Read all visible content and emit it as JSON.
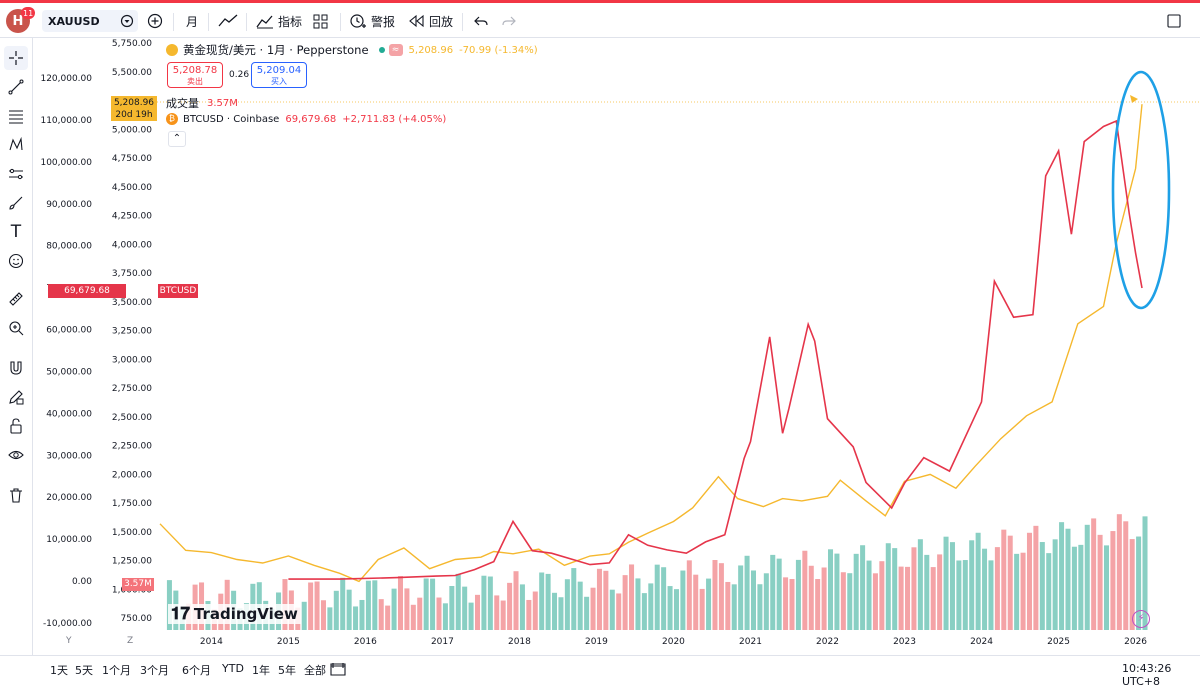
{
  "toolbar": {
    "avatar_letter": "H",
    "notification_count": "11",
    "symbol": "XAUUSD",
    "interval": "月",
    "indicators": "指标",
    "alerts": "警报",
    "replay": "回放"
  },
  "legend": {
    "main_title": "黄金现货/美元 · 1月 · Pepperstone",
    "main_price": "5,208.96",
    "main_change": "-70.99 (-1.34%)",
    "sell_price": "5,208.78",
    "sell_label": "卖出",
    "spread": "0.26",
    "buy_price": "5,209.04",
    "buy_label": "买入",
    "volume_label": "成交量",
    "volume_value": "3.57M",
    "btc_title": "BTCUSD · Coinbase",
    "btc_value": "69,679.68",
    "btc_change": "+2,711.83 (+4.05%)"
  },
  "axis_badges": {
    "btc_left_price": "69,679.68",
    "btc_symbol": "BTCUSD",
    "gold_price": "5,208.96",
    "gold_countdown": "20d 19h",
    "volume_badge": "3.57M"
  },
  "watermark": "TradingView",
  "left_axis_btc": [
    "120,000.00",
    "110,000.00",
    "100,000.00",
    "90,000.00",
    "80,000.00",
    "70,000.00",
    "60,000.00",
    "50,000.00",
    "40,000.00",
    "30,000.00",
    "20,000.00",
    "10,000.00",
    "0.00",
    "-10,000.00"
  ],
  "left_axis_gold": [
    "5,750.00",
    "5,500.00",
    "5,250.00",
    "5,000.00",
    "4,750.00",
    "4,500.00",
    "4,250.00",
    "4,000.00",
    "3,750.00",
    "3,500.00",
    "3,250.00",
    "3,000.00",
    "2,750.00",
    "2,500.00",
    "2,250.00",
    "2,000.00",
    "1,750.00",
    "1,500.00",
    "1,250.00",
    "1,000.00",
    "750.00"
  ],
  "x_axis_years": [
    "2014",
    "2015",
    "2016",
    "2017",
    "2018",
    "2019",
    "2020",
    "2021",
    "2022",
    "2023",
    "2024",
    "2025",
    "2026"
  ],
  "axis_corner": {
    "y": "Y",
    "z": "Z"
  },
  "bottom_bar": {
    "ranges": [
      "1天",
      "5天",
      "1个月",
      "3个月",
      "6个月",
      "YTD",
      "1年",
      "5年",
      "全部"
    ],
    "clock": "10:43:26 UTC+8"
  },
  "colors": {
    "gold_line": "#f5b82e",
    "btc_line": "#e5354a",
    "volume_up": "#89cfc3",
    "volume_down": "#f4a3a6",
    "annotation_ellipse": "#1ea0e6"
  },
  "chart_data": {
    "type": "line",
    "series": [
      {
        "name": "XAUUSD",
        "x": [
          "2013-05",
          "2013-09",
          "2014-01",
          "2014-05",
          "2014-09",
          "2015-01",
          "2015-05",
          "2015-09",
          "2015-12",
          "2016-03",
          "2016-07",
          "2016-11",
          "2017-03",
          "2017-07",
          "2017-09",
          "2017-12",
          "2018-04",
          "2018-08",
          "2018-12",
          "2019-03",
          "2019-06",
          "2019-09",
          "2020-01",
          "2020-04",
          "2020-08",
          "2020-11",
          "2021-03",
          "2021-06",
          "2021-09",
          "2022-01",
          "2022-03",
          "2022-07",
          "2022-10",
          "2023-01",
          "2023-05",
          "2023-09",
          "2023-12",
          "2024-04",
          "2024-08",
          "2024-12",
          "2025-04",
          "2025-08",
          "2025-10",
          "2026-01",
          "2026-02"
        ],
        "values": [
          1560,
          1330,
          1310,
          1250,
          1220,
          1280,
          1200,
          1130,
          1060,
          1250,
          1350,
          1170,
          1250,
          1270,
          1320,
          1300,
          1340,
          1200,
          1280,
          1300,
          1400,
          1480,
          1580,
          1700,
          1970,
          1780,
          1710,
          1780,
          1760,
          1800,
          1940,
          1760,
          1630,
          1930,
          1990,
          1870,
          2060,
          2300,
          2500,
          2620,
          3300,
          3450,
          4000,
          4650,
          5209
        ]
      },
      {
        "name": "BTCUSD",
        "x": [
          "2015-01",
          "2015-09",
          "2016-06",
          "2016-12",
          "2017-03",
          "2017-06",
          "2017-09",
          "2017-12",
          "2018-03",
          "2018-06",
          "2018-12",
          "2019-03",
          "2019-06",
          "2019-09",
          "2019-12",
          "2020-03",
          "2020-06",
          "2020-09",
          "2020-12",
          "2021-01",
          "2021-04",
          "2021-06",
          "2021-07",
          "2021-10",
          "2021-11",
          "2022-01",
          "2022-05",
          "2022-07",
          "2022-11",
          "2023-01",
          "2023-04",
          "2023-08",
          "2024-01",
          "2024-03",
          "2024-06",
          "2024-09",
          "2024-11",
          "2025-01",
          "2025-03",
          "2025-05",
          "2025-08",
          "2025-10",
          "2025-12",
          "2026-01",
          "2026-02"
        ],
        "values": [
          230,
          240,
          600,
          960,
          1100,
          2500,
          4400,
          14000,
          7000,
          6400,
          3700,
          4100,
          10800,
          8300,
          7200,
          6400,
          9100,
          10800,
          29000,
          33000,
          58000,
          35000,
          41000,
          61000,
          57000,
          38500,
          31800,
          23300,
          17200,
          23100,
          29200,
          26000,
          42500,
          71300,
          62700,
          63300,
          96400,
          102400,
          82500,
          104600,
          108200,
          109500,
          87500,
          78000,
          69680
        ]
      }
    ],
    "volume_note": "monthly volume histogram, teal up / red down",
    "yaxis_left_btc": [
      -10000,
      120000
    ],
    "yaxis_left_gold": [
      750,
      5750
    ],
    "xaxis_range": [
      "2013-05",
      "2026-02"
    ]
  }
}
